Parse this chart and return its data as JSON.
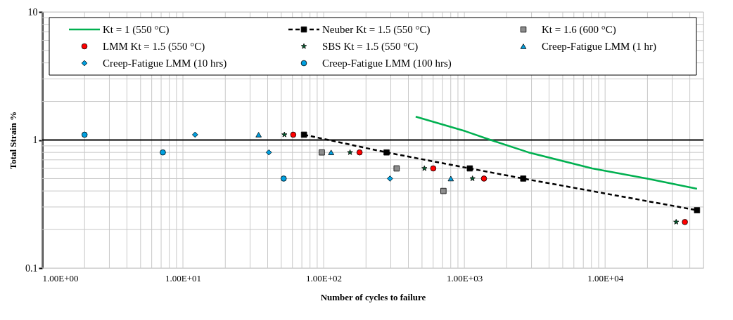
{
  "chart_data": {
    "type": "scatter",
    "xlabel": "Number of cycles to failure",
    "ylabel": "Total Strain %",
    "log": "xy",
    "grid": true,
    "legend": "top",
    "xlim": [
      1,
      50000
    ],
    "ylim": [
      0.1,
      10
    ],
    "xticks": [
      {
        "value": 1,
        "label": "1.00E+00"
      },
      {
        "value": 10,
        "label": "1.00E+01"
      },
      {
        "value": 100,
        "label": "1.00E+02"
      },
      {
        "value": 1000,
        "label": "1.00E+03"
      },
      {
        "value": 10000,
        "label": "1.00E+04"
      }
    ],
    "yticks": [
      0.1,
      1,
      10
    ],
    "ref_lines": [
      {
        "axis": "y",
        "value": 1,
        "color": "#000000"
      }
    ],
    "series": [
      {
        "name": "Kt = 1 (550 °C)",
        "type": "line",
        "marker": "none",
        "line_style": "solid",
        "color": "#00b050",
        "x": [
          451,
          1020,
          1540,
          2860,
          8100,
          19900,
          45000
        ],
        "values": [
          1.52,
          1.17,
          1.0,
          0.8,
          0.6,
          0.5,
          0.416
        ]
      },
      {
        "name": "Neuber Kt = 1.5 (550 °C)",
        "type": "line",
        "marker": "square",
        "line_style": "dashed",
        "color": "#000000",
        "x": [
          72.5,
          280,
          1093,
          2620,
          45000
        ],
        "values": [
          1.1,
          0.8,
          0.6,
          0.5,
          0.283
        ]
      },
      {
        "name": "Kt = 1.6 (600 °C)",
        "marker": "square",
        "color": "#8c8c8c",
        "x": [
          97,
          330,
          710
        ],
        "values": [
          0.8,
          0.6,
          0.4
        ]
      },
      {
        "name": "LMM  Kt = 1.5 (550 °C)",
        "marker": "circle",
        "color": "#ff0000",
        "x": [
          60.8,
          180,
          601,
          1378,
          36900
        ],
        "values": [
          1.1,
          0.8,
          0.6,
          0.5,
          0.229
        ]
      },
      {
        "name": "SBS  Kt = 1.5 (550 °C)",
        "marker": "star",
        "color": "#00602f",
        "x": [
          52.6,
          154,
          520,
          1142,
          32000
        ],
        "values": [
          1.1,
          0.8,
          0.6,
          0.5,
          0.229
        ]
      },
      {
        "name": "Creep-Fatigue LMM (1 hr)",
        "marker": "triangle",
        "color": "#00a0e0",
        "x": [
          34.5,
          113,
          801
        ],
        "values": [
          1.1,
          0.8,
          0.5
        ]
      },
      {
        "name": "Creep-Fatigue LMM (10 hrs)",
        "marker": "diamond",
        "color": "#00a0e0",
        "x": [
          12.2,
          40.8,
          296
        ],
        "values": [
          1.1,
          0.8,
          0.5
        ]
      },
      {
        "name": "Creep-Fatigue LMM (100 hrs)",
        "marker": "circle",
        "color": "#00a0e0",
        "x": [
          2,
          7.2,
          52
        ],
        "values": [
          1.1,
          0.8,
          0.5
        ]
      }
    ]
  }
}
